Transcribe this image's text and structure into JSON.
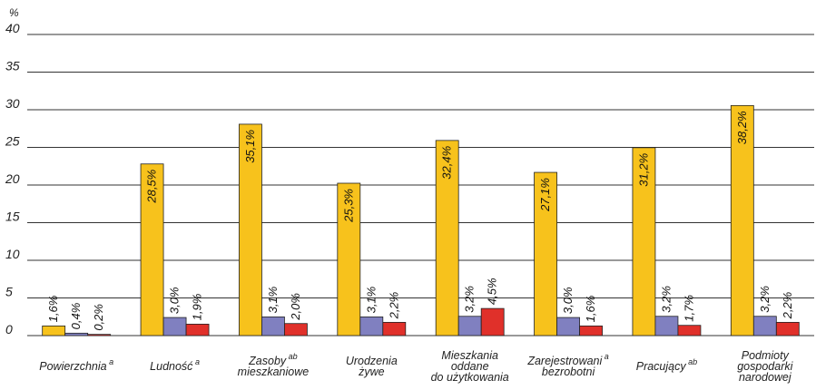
{
  "chart_data": {
    "type": "bar",
    "ylabel": "%",
    "ylim": [
      -10,
      40
    ],
    "yticks": [
      "40",
      "35",
      "30",
      "25",
      "20",
      "15",
      "10",
      "5",
      "0"
    ],
    "grid": true,
    "categories": [
      {
        "lines": [
          "Powierzchnia"
        ],
        "sup": "a"
      },
      {
        "lines": [
          "Ludność"
        ],
        "sup": "a"
      },
      {
        "lines": [
          "Zasoby",
          "mieszkaniowe"
        ],
        "sup": "ab"
      },
      {
        "lines": [
          "Urodzenia",
          "żywe"
        ],
        "sup": ""
      },
      {
        "lines": [
          "Mieszkania",
          "oddane",
          "do użytkowania"
        ],
        "sup": ""
      },
      {
        "lines": [
          "Zarejestrowani",
          "bezrobotni"
        ],
        "sup": "a"
      },
      {
        "lines": [
          "Pracujący"
        ],
        "sup": "ab"
      },
      {
        "lines": [
          "Podmioty",
          "gospodarki",
          "narodowej"
        ],
        "sup": ""
      }
    ],
    "series": [
      {
        "color": "#F7C21C",
        "values": [
          1.6,
          28.5,
          35.1,
          25.3,
          32.4,
          27.1,
          31.2,
          38.2
        ],
        "labels": [
          "1,6%",
          "28,5%",
          "35,1%",
          "25,3%",
          "32,4%",
          "27,1%",
          "31,2%",
          "38,2%"
        ]
      },
      {
        "color": "#8080C0",
        "values": [
          0.4,
          3.0,
          3.1,
          3.1,
          3.2,
          3.0,
          3.2,
          3.2
        ],
        "labels": [
          "0,4%",
          "3,0%",
          "3,1%",
          "3,1%",
          "3,2%",
          "3,0%",
          "3,2%",
          "3,2%"
        ]
      },
      {
        "color": "#E0302A",
        "values": [
          0.2,
          1.9,
          2.0,
          2.2,
          4.5,
          1.6,
          1.7,
          2.2
        ],
        "labels": [
          "0,2%",
          "1,9%",
          "2,0%",
          "2,2%",
          "4,5%",
          "1,6%",
          "1,7%",
          "2,2%"
        ]
      }
    ]
  }
}
